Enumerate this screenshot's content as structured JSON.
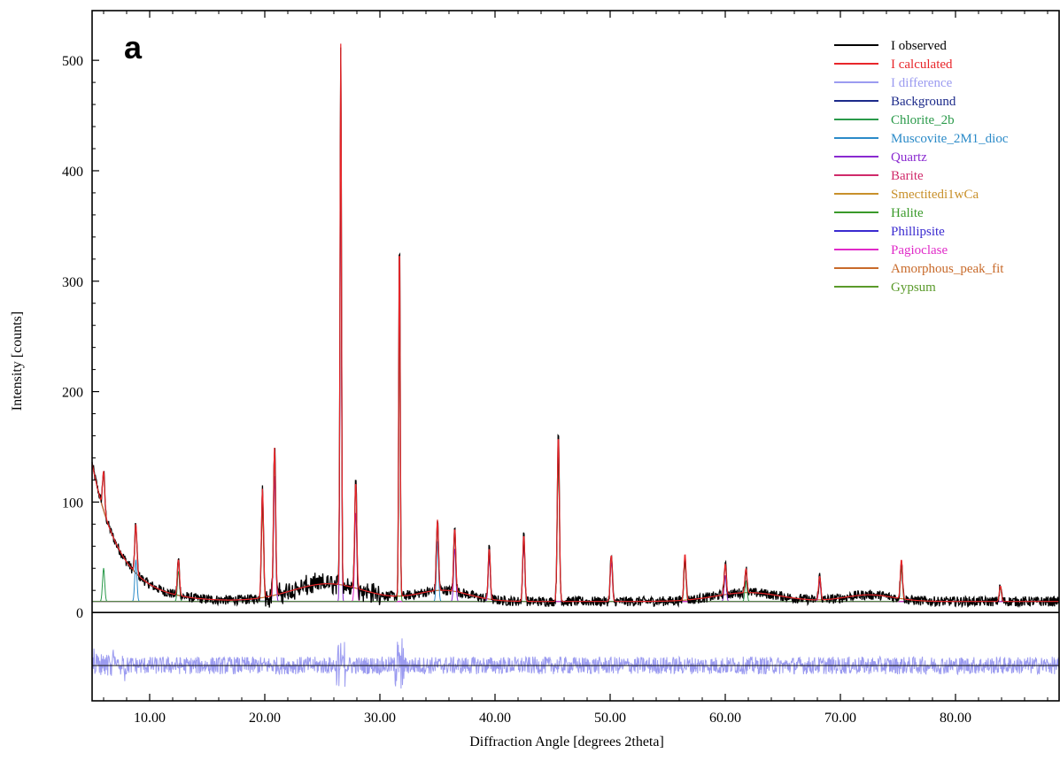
{
  "chart_data": {
    "type": "line",
    "panel_label": "a",
    "xlabel": "Diffraction Angle [degrees 2theta]",
    "ylabel": "Intensity [counts]",
    "xlim": [
      5.0,
      89.0
    ],
    "ylim": [
      -80,
      545
    ],
    "x_ticks": [
      10,
      20,
      30,
      40,
      50,
      60,
      70,
      80
    ],
    "x_tick_labels": [
      "10.00",
      "20.00",
      "30.00",
      "40.00",
      "50.00",
      "60.00",
      "70.00",
      "80.00"
    ],
    "y_ticks": [
      0,
      100,
      200,
      300,
      400,
      500
    ],
    "y_tick_labels": [
      "0",
      "100",
      "200",
      "300",
      "400",
      "500"
    ],
    "legend_position": "top-right",
    "grid": false,
    "difference_baseline": -48,
    "series": [
      {
        "name": "I observed",
        "color": "#000000"
      },
      {
        "name": "I calculated",
        "color": "#e8262a"
      },
      {
        "name": "I difference",
        "color": "#9b9bf0"
      },
      {
        "name": "Background",
        "color": "#1c2a8a"
      },
      {
        "name": "Chlorite_2b",
        "color": "#2a9a4a"
      },
      {
        "name": "Muscovite_2M1_dioc",
        "color": "#2a8ac8"
      },
      {
        "name": "Quartz",
        "color": "#8a2ad0"
      },
      {
        "name": "Barite",
        "color": "#d02a6a"
      },
      {
        "name": "Smectitedi1wCa",
        "color": "#c8902a"
      },
      {
        "name": "Halite",
        "color": "#3a9a2a"
      },
      {
        "name": "Phillipsite",
        "color": "#3a2ad0"
      },
      {
        "name": "Pagioclase",
        "color": "#e02ac8"
      },
      {
        "name": "Amorphous_peak_fit",
        "color": "#c86a2a"
      },
      {
        "name": "Gypsum",
        "color": "#5a9a2a"
      }
    ],
    "peaks": [
      {
        "x": 6.0,
        "obs": 128,
        "phase": "Chlorite_2b"
      },
      {
        "x": 8.8,
        "obs": 80,
        "phase": "Muscovite_2M1_dioc"
      },
      {
        "x": 12.5,
        "obs": 48,
        "phase": "Chlorite_2b"
      },
      {
        "x": 19.8,
        "obs": 112,
        "phase": "Smectitedi1wCa"
      },
      {
        "x": 20.85,
        "obs": 150,
        "phase": "Quartz"
      },
      {
        "x": 26.6,
        "obs": 515,
        "phase": "Quartz"
      },
      {
        "x": 27.9,
        "obs": 118,
        "phase": "Pagioclase"
      },
      {
        "x": 31.7,
        "obs": 338,
        "phase": "Halite"
      },
      {
        "x": 35.0,
        "obs": 84,
        "phase": "Muscovite_2M1_dioc"
      },
      {
        "x": 36.5,
        "obs": 76,
        "phase": "Quartz"
      },
      {
        "x": 39.5,
        "obs": 58,
        "phase": "Quartz"
      },
      {
        "x": 42.5,
        "obs": 70,
        "phase": "Quartz"
      },
      {
        "x": 45.5,
        "obs": 160,
        "phase": "Halite"
      },
      {
        "x": 50.1,
        "obs": 52,
        "phase": "Quartz"
      },
      {
        "x": 56.5,
        "obs": 53,
        "phase": "Halite"
      },
      {
        "x": 60.0,
        "obs": 44,
        "phase": "Quartz"
      },
      {
        "x": 61.8,
        "obs": 40,
        "phase": "Chlorite_2b"
      },
      {
        "x": 68.2,
        "obs": 33,
        "phase": "Quartz"
      },
      {
        "x": 75.3,
        "obs": 48,
        "phase": "Halite"
      },
      {
        "x": 83.9,
        "obs": 24,
        "phase": "Halite"
      }
    ]
  }
}
